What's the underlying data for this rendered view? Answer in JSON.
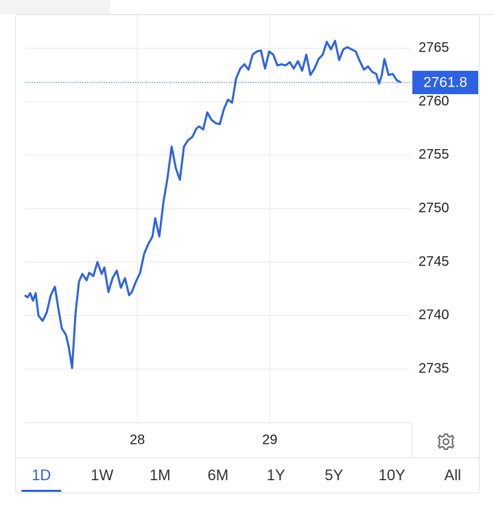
{
  "chart_data": {
    "type": "line",
    "x": [
      27.15,
      27.171,
      27.192,
      27.212,
      27.233,
      27.254,
      27.285,
      27.316,
      27.347,
      27.378,
      27.409,
      27.43,
      27.461,
      27.482,
      27.508,
      27.534,
      27.56,
      27.585,
      27.617,
      27.637,
      27.668,
      27.699,
      27.731,
      27.751,
      27.782,
      27.813,
      27.845,
      27.876,
      27.907,
      27.938,
      27.959,
      27.99,
      28.021,
      28.052,
      28.083,
      28.114,
      28.135,
      28.166,
      28.197,
      28.228,
      28.259,
      28.29,
      28.321,
      28.352,
      28.383,
      28.415,
      28.446,
      28.466,
      28.497,
      28.528,
      28.56,
      28.591,
      28.622,
      28.653,
      28.684,
      28.715,
      28.746,
      28.777,
      28.808,
      28.839,
      28.87,
      28.902,
      28.933,
      28.964,
      28.995,
      29.026,
      29.057,
      29.088,
      29.119,
      29.15,
      29.181,
      29.212,
      29.244,
      29.275,
      29.306,
      29.337,
      29.368,
      29.399,
      29.43,
      29.461,
      29.492,
      29.523,
      29.554,
      29.585,
      29.617,
      29.648,
      29.679,
      29.71,
      29.741,
      29.772,
      29.803,
      29.824,
      29.845,
      29.865,
      29.896,
      29.927,
      29.959,
      29.99
    ],
    "series": [
      {
        "color": "#2c62e3",
        "values": [
          2741.9,
          2741.7,
          2742.1,
          2741.4,
          2742.1,
          2740.0,
          2739.5,
          2740.3,
          2741.9,
          2742.7,
          2740.3,
          2738.8,
          2738.2,
          2737.1,
          2735.1,
          2740.3,
          2743.2,
          2743.9,
          2743.3,
          2744.0,
          2743.7,
          2745.0,
          2743.9,
          2744.5,
          2742.2,
          2743.5,
          2744.2,
          2742.6,
          2743.5,
          2741.9,
          2742.2,
          2743.2,
          2744.0,
          2745.8,
          2746.7,
          2747.4,
          2749.1,
          2747.4,
          2750.6,
          2752.9,
          2755.8,
          2753.8,
          2752.7,
          2755.8,
          2756.4,
          2756.7,
          2757.5,
          2757.7,
          2757.4,
          2759.0,
          2758.3,
          2758.0,
          2757.9,
          2759.3,
          2760.2,
          2759.9,
          2762.2,
          2763.1,
          2763.5,
          2763.0,
          2764.4,
          2764.7,
          2764.8,
          2763.1,
          2764.7,
          2764.4,
          2763.4,
          2763.5,
          2763.4,
          2763.7,
          2763.1,
          2763.8,
          2762.9,
          2764.4,
          2762.5,
          2763.1,
          2764.0,
          2764.4,
          2765.6,
          2764.9,
          2765.7,
          2763.9,
          2764.9,
          2765.1,
          2764.9,
          2764.7,
          2763.8,
          2763.0,
          2763.3,
          2762.8,
          2762.6,
          2761.7,
          2762.5,
          2764.0,
          2762.5,
          2762.6,
          2762.0,
          2761.8
        ]
      }
    ],
    "xlim": [
      27.15,
      30.06
    ],
    "xticks": [
      28,
      29
    ],
    "ylim": [
      2730,
      2768.1
    ],
    "yticks": [
      2735,
      2740,
      2745,
      2750,
      2755,
      2760,
      2765
    ],
    "grid": true,
    "last_value": 2761.8,
    "last_value_color": "#2c62e3",
    "ranges": [
      "1D",
      "1W",
      "1M",
      "6M",
      "1Y",
      "5Y",
      "10Y",
      "All"
    ],
    "selected_range": 0
  }
}
